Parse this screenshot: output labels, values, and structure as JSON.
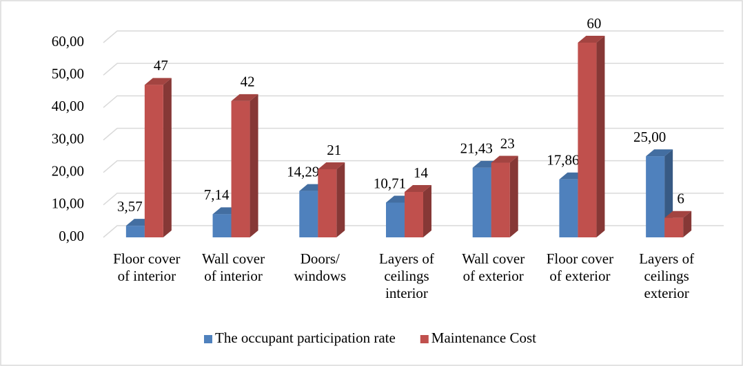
{
  "chart_data": {
    "type": "bar3d",
    "categories": [
      "Floor cover of interior",
      "Wall cover of interior",
      "Doors/ windows",
      "Layers of ceilings interior",
      "Wall cover of exterior",
      "Floor cover of exterior",
      "Layers of ceilings exterior"
    ],
    "series": [
      {
        "name": "The occupant participation rate",
        "color": "#4f81bd",
        "values": [
          3.57,
          7.14,
          14.29,
          10.71,
          21.43,
          17.86,
          25.0
        ],
        "value_labels": [
          "3,57",
          "7,14",
          "14,29",
          "10,71",
          "21,43",
          "17,86",
          "25,00"
        ]
      },
      {
        "name": "Maintenance Cost",
        "color": "#c0504d",
        "values": [
          47,
          42,
          21,
          14,
          23,
          60,
          6
        ]
      }
    ],
    "ylim": [
      0,
      60
    ],
    "yticks": [
      {
        "value": 0,
        "label": "0,00"
      },
      {
        "value": 10,
        "label": "10,00"
      },
      {
        "value": 20,
        "label": "20,00"
      },
      {
        "value": 30,
        "label": "30,00"
      },
      {
        "value": 40,
        "label": "40,00"
      },
      {
        "value": 50,
        "label": "50,00"
      },
      {
        "value": 60,
        "label": "60,00"
      }
    ],
    "grid": true,
    "legend": "bottom"
  }
}
